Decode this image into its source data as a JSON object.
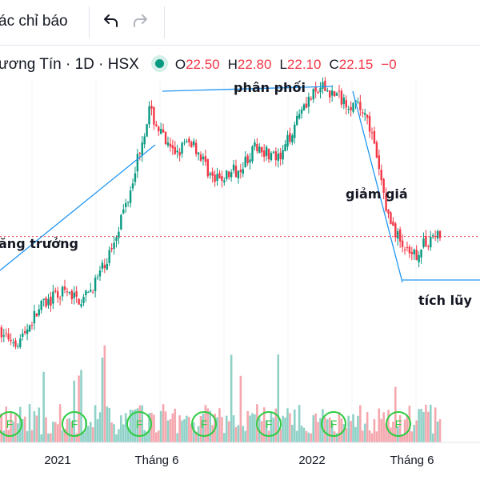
{
  "toolbar": {
    "indicators_label": "ác chỉ báo",
    "undo_icon": "undo-arrow-icon",
    "redo_icon": "redo-arrow-icon"
  },
  "legend": {
    "symbol": "ương Tín · 1D · HSX",
    "status_color": "#089981",
    "open_label": "O",
    "open": "22.50",
    "high_label": "H",
    "high": "22.80",
    "low_label": "L",
    "low": "22.10",
    "close_label": "C",
    "close": "22.15",
    "change": "−0"
  },
  "chart_data": {
    "type": "candlestick",
    "title": "",
    "x_tick_labels": [
      "2021",
      "Tháng 6",
      "2022",
      "Tháng 6"
    ],
    "price_path": [
      {
        "t": "2020-11",
        "price": 17.5
      },
      {
        "t": "2020-12",
        "price": 17.0
      },
      {
        "t": "2021-01",
        "price": 18.7
      },
      {
        "t": "2021-02",
        "price": 19.4
      },
      {
        "t": "2021-03",
        "price": 19.0
      },
      {
        "t": "2021-04",
        "price": 20.8
      },
      {
        "t": "2021-05",
        "price": 24.0
      },
      {
        "t": "2021-06",
        "price": 28.3
      },
      {
        "t": "2021-07",
        "price": 26.2
      },
      {
        "t": "2021-08",
        "price": 26.8
      },
      {
        "t": "2021-09",
        "price": 24.8
      },
      {
        "t": "2021-10",
        "price": 25.4
      },
      {
        "t": "2021-11",
        "price": 26.6
      },
      {
        "t": "2021-12",
        "price": 25.8
      },
      {
        "t": "2022-01",
        "price": 28.6
      },
      {
        "t": "2022-02",
        "price": 29.4
      },
      {
        "t": "2022-03",
        "price": 28.8
      },
      {
        "t": "2022-04",
        "price": 28.2
      },
      {
        "t": "2022-05",
        "price": 23.0
      },
      {
        "t": "2022-06",
        "price": 21.0
      },
      {
        "t": "2022-07",
        "price": 22.2
      }
    ],
    "last_price": 22.15,
    "last_price_line": "dotted red",
    "annotations": [
      {
        "text": "ăng trưởng",
        "kind": "trendline-up"
      },
      {
        "text": "phân phối",
        "kind": "horizontal-top"
      },
      {
        "text": "giảm giá",
        "kind": "trendline-down"
      },
      {
        "text": "tích lũy",
        "kind": "horizontal-bottom"
      }
    ],
    "volume_bars": "green/red by candle direction",
    "event_markers": {
      "label": "F",
      "count": 7,
      "color": "#2ecc40"
    },
    "colors": {
      "up": "#089981",
      "down": "#f23645",
      "volume_up": "#8fd1c7",
      "volume_down": "#f5a7ae",
      "trendline": "#2196f3"
    }
  }
}
